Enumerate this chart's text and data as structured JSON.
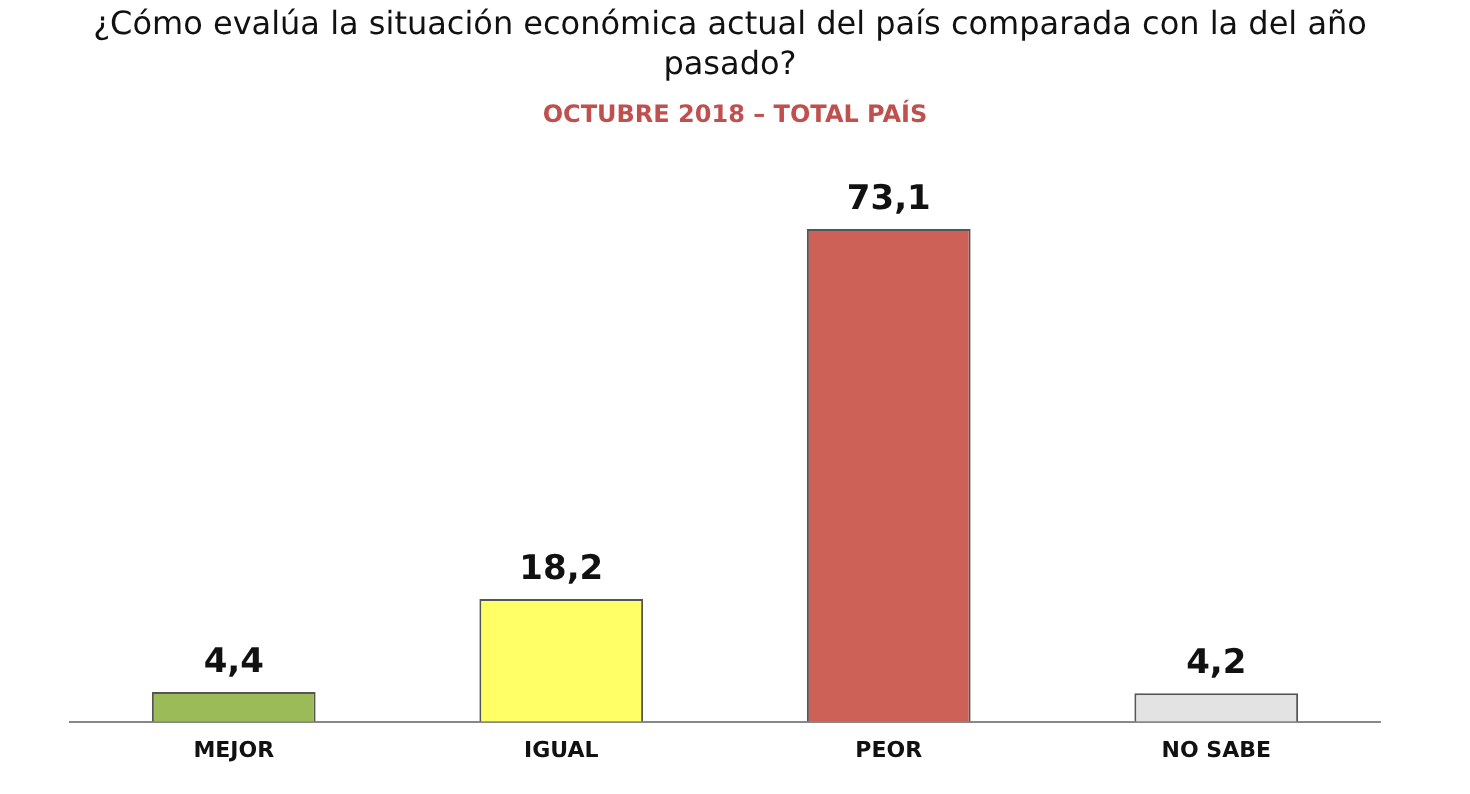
{
  "chart_data": {
    "type": "bar",
    "title": "¿Cómo evalúa la situación económica actual del país comparada con la del año pasado?",
    "subtitle": "OCTUBRE 2018 – TOTAL PAÍS",
    "categories": [
      "MEJOR",
      "IGUAL",
      "PEOR",
      "NO SABE"
    ],
    "values": [
      4.4,
      18.2,
      73.1,
      4.2
    ],
    "colors": [
      "#9bbb59",
      "#ffff66",
      "#cd6158",
      "#e3e3e3"
    ],
    "value_labels": [
      "4,4",
      "18,2",
      "73,1",
      "4,2"
    ],
    "grid": false,
    "legend": false
  }
}
